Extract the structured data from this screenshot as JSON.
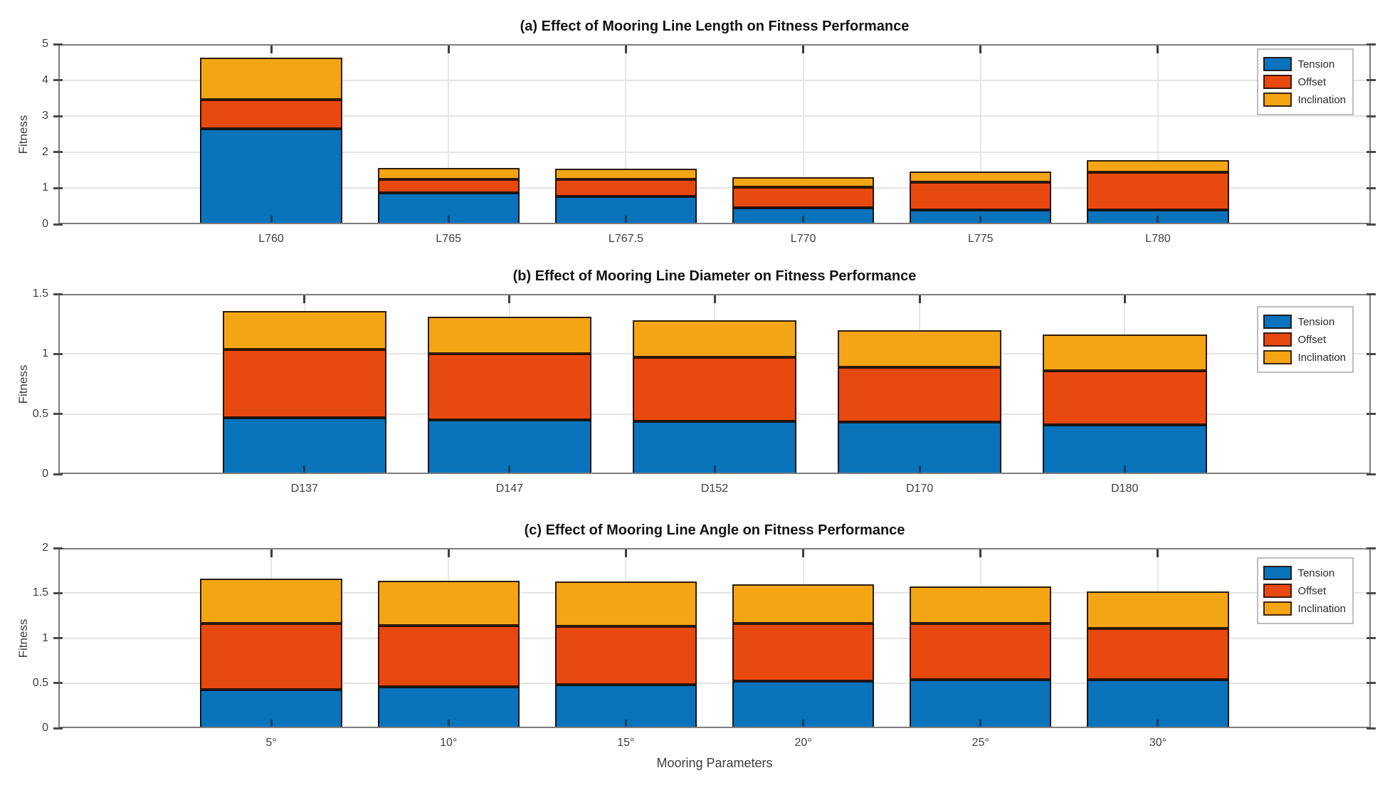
{
  "figure": {
    "xlabel": "Mooring Parameters",
    "background": "#ffffff"
  },
  "colors": {
    "tension": "#0973BC",
    "offset": "#E8490F",
    "inclination": "#F3A514",
    "edge": "#141414",
    "grid": "#e4e4e4",
    "frame": "#7d7d7d",
    "text": "#404040",
    "title_text": "#141414",
    "legend_border": "#bdbdbd"
  },
  "legend": {
    "entries": [
      "Tension",
      "Offset",
      "Inclination"
    ],
    "position": "top-right"
  },
  "chart_data": [
    {
      "id": "a",
      "type": "bar",
      "stacked": true,
      "title": "(a) Effect of Mooring Line Length on Fitness Performance",
      "ylabel": "Fitness",
      "categories": [
        "L760",
        "L765",
        "L767.5",
        "L770",
        "L775",
        "L780"
      ],
      "series": [
        {
          "name": "Tension",
          "color_key": "tension",
          "values": [
            2.65,
            0.87,
            0.78,
            0.46,
            0.39,
            0.39
          ]
        },
        {
          "name": "Offset",
          "color_key": "offset",
          "values": [
            0.8,
            0.38,
            0.46,
            0.56,
            0.77,
            1.06
          ]
        },
        {
          "name": "Inclination",
          "color_key": "inclination",
          "values": [
            1.17,
            0.31,
            0.31,
            0.29,
            0.3,
            0.32
          ]
        }
      ],
      "ylim": [
        0,
        5
      ],
      "yticks": [
        0,
        1,
        2,
        3,
        4,
        5
      ],
      "grid": true,
      "legend_position": "top-right"
    },
    {
      "id": "b",
      "type": "bar",
      "stacked": true,
      "title": "(b) Effect of Mooring Line Diameter on Fitness Performance",
      "ylabel": "Fitness",
      "categories": [
        "D137",
        "D147",
        "D152",
        "D170",
        "D180"
      ],
      "series": [
        {
          "name": "Tension",
          "color_key": "tension",
          "values": [
            0.47,
            0.45,
            0.44,
            0.43,
            0.41
          ]
        },
        {
          "name": "Offset",
          "color_key": "offset",
          "values": [
            0.57,
            0.55,
            0.53,
            0.46,
            0.45
          ]
        },
        {
          "name": "Inclination",
          "color_key": "inclination",
          "values": [
            0.32,
            0.31,
            0.31,
            0.31,
            0.3
          ]
        }
      ],
      "ylim": [
        0,
        1.5
      ],
      "yticks": [
        0,
        0.5,
        1,
        1.5
      ],
      "grid": true,
      "legend_position": "top-right"
    },
    {
      "id": "c",
      "type": "bar",
      "stacked": true,
      "title": "(c) Effect of Mooring Line Angle on Fitness Performance",
      "ylabel": "Fitness",
      "categories": [
        "5°",
        "10°",
        "15°",
        "20°",
        "25°",
        "30°"
      ],
      "series": [
        {
          "name": "Tension",
          "color_key": "tension",
          "values": [
            0.43,
            0.46,
            0.48,
            0.52,
            0.54,
            0.54
          ]
        },
        {
          "name": "Offset",
          "color_key": "offset",
          "values": [
            0.73,
            0.68,
            0.65,
            0.64,
            0.62,
            0.57
          ]
        },
        {
          "name": "Inclination",
          "color_key": "inclination",
          "values": [
            0.5,
            0.5,
            0.5,
            0.44,
            0.41,
            0.41
          ]
        }
      ],
      "ylim": [
        0,
        2
      ],
      "yticks": [
        0,
        0.5,
        1,
        1.5,
        2
      ],
      "grid": true,
      "legend_position": "top-right"
    }
  ]
}
